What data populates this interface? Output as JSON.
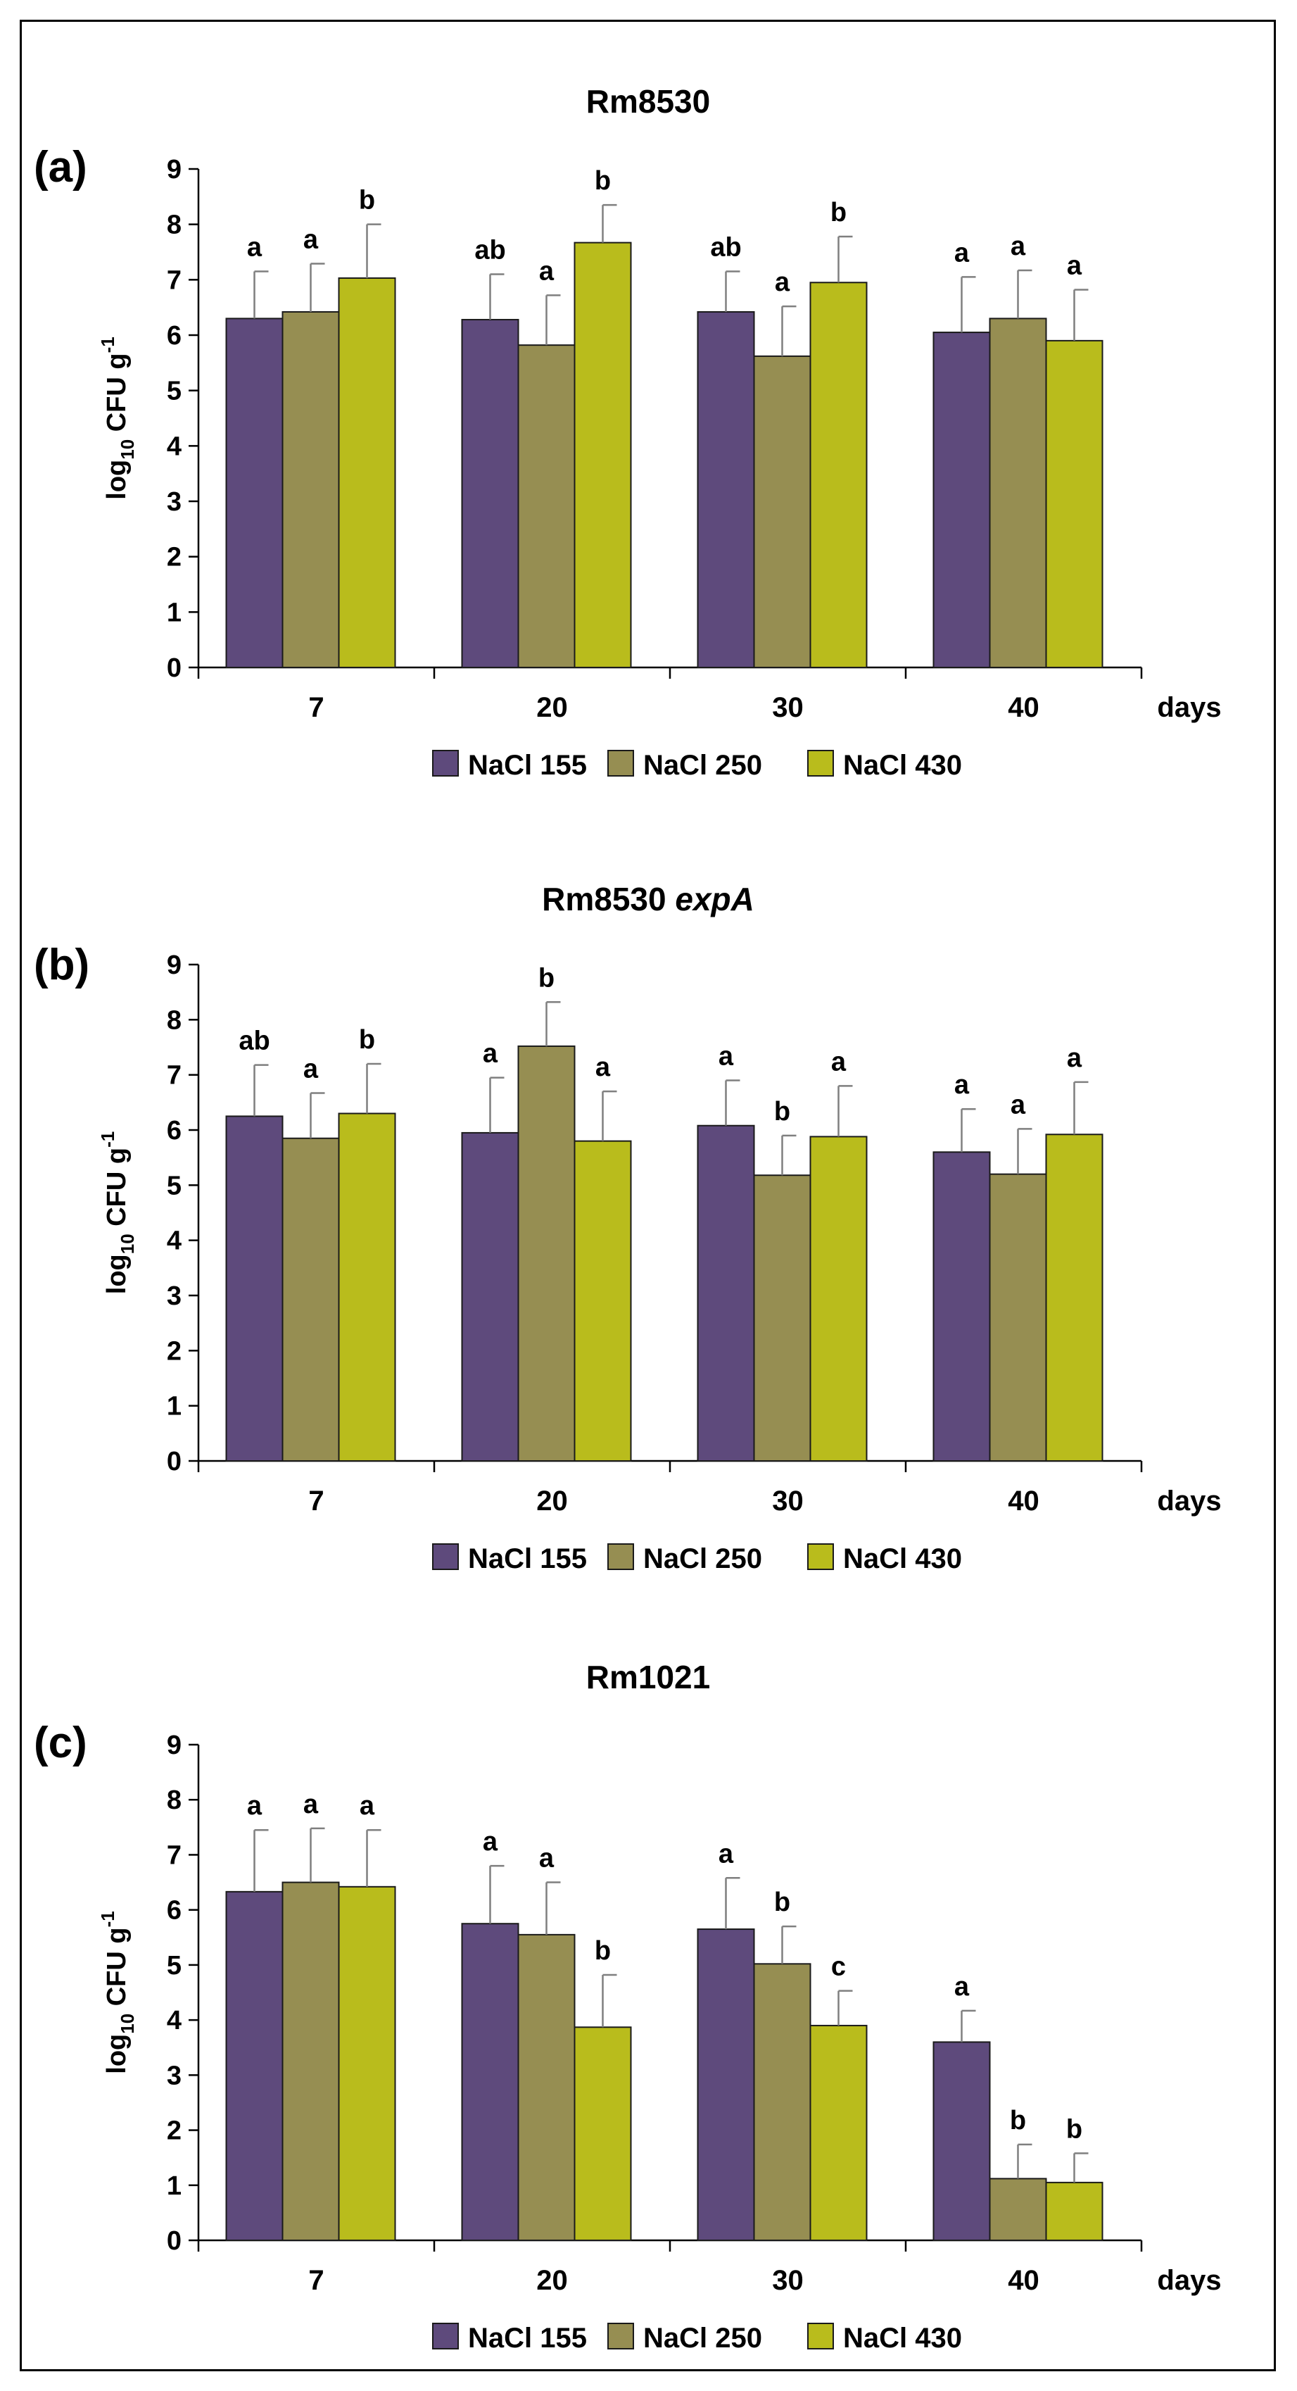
{
  "colors": {
    "NaCl 155": "#5e4a7c",
    "NaCl 250": "#968e52",
    "NaCl 430": "#b9bc1c",
    "error_bar": "#7f7f7f"
  },
  "legend_placement": "bottom-center",
  "chart_data": [
    {
      "type": "bar",
      "panel": "(a)",
      "title": "Rm8530",
      "title_italic": "",
      "ylabel": {
        "base": "log",
        "sub": "10",
        "main": " CFU g",
        "sup": "-1"
      },
      "xlabel": "days",
      "categories": [
        "7",
        "20",
        "30",
        "40"
      ],
      "ylim": [
        0,
        9
      ],
      "yticks": [
        "0",
        "1",
        "2",
        "3",
        "4",
        "5",
        "6",
        "7",
        "8",
        "9"
      ],
      "grid": false,
      "legend": [
        "NaCl 155",
        "NaCl 250",
        "NaCl 430"
      ],
      "series": [
        {
          "name": "NaCl 155",
          "values": [
            6.3,
            6.28,
            6.42,
            6.05
          ],
          "errors": [
            0.85,
            0.82,
            0.73,
            1.0
          ],
          "letters": [
            "a",
            "ab",
            "ab",
            "a"
          ]
        },
        {
          "name": "NaCl 250",
          "values": [
            6.42,
            5.82,
            5.62,
            6.3
          ],
          "errors": [
            0.87,
            0.9,
            0.9,
            0.87
          ],
          "letters": [
            "a",
            "a",
            "a",
            "a"
          ]
        },
        {
          "name": "NaCl 430",
          "values": [
            7.03,
            7.67,
            6.95,
            5.9
          ],
          "errors": [
            0.97,
            0.68,
            0.83,
            0.92
          ],
          "letters": [
            "b",
            "b",
            "b",
            "a"
          ]
        }
      ]
    },
    {
      "type": "bar",
      "panel": "(b)",
      "title": "Rm8530 ",
      "title_italic": "expA",
      "ylabel": {
        "base": "log",
        "sub": "10",
        "main": " CFU g",
        "sup": "-1"
      },
      "xlabel": "days",
      "categories": [
        "7",
        "20",
        "30",
        "40"
      ],
      "ylim": [
        0,
        9
      ],
      "yticks": [
        "0",
        "1",
        "2",
        "3",
        "4",
        "5",
        "6",
        "7",
        "8",
        "9"
      ],
      "grid": false,
      "legend": [
        "NaCl 155",
        "NaCl 250",
        "NaCl 430"
      ],
      "series": [
        {
          "name": "NaCl 155",
          "values": [
            6.25,
            5.95,
            6.08,
            5.6
          ],
          "errors": [
            0.93,
            1.0,
            0.82,
            0.78
          ],
          "letters": [
            "ab",
            "a",
            "a",
            "a"
          ]
        },
        {
          "name": "NaCl 250",
          "values": [
            5.85,
            7.52,
            5.18,
            5.2
          ],
          "errors": [
            0.82,
            0.8,
            0.72,
            0.82
          ],
          "letters": [
            "a",
            "b",
            "b",
            "a"
          ]
        },
        {
          "name": "NaCl 430",
          "values": [
            6.3,
            5.8,
            5.88,
            5.92
          ],
          "errors": [
            0.9,
            0.9,
            0.92,
            0.95
          ],
          "letters": [
            "b",
            "a",
            "a",
            "a"
          ]
        }
      ]
    },
    {
      "type": "bar",
      "panel": "(c)",
      "title": "Rm1021",
      "title_italic": "",
      "ylabel": {
        "base": "log",
        "sub": "10",
        "main": " CFU g",
        "sup": "-1"
      },
      "xlabel": "days",
      "categories": [
        "7",
        "20",
        "30",
        "40"
      ],
      "ylim": [
        0,
        9
      ],
      "yticks": [
        "0",
        "1",
        "2",
        "3",
        "4",
        "5",
        "6",
        "7",
        "8",
        "9"
      ],
      "grid": false,
      "legend": [
        "NaCl 155",
        "NaCl 250",
        "NaCl 430"
      ],
      "series": [
        {
          "name": "NaCl 155",
          "values": [
            6.33,
            5.75,
            5.65,
            3.6
          ],
          "errors": [
            1.12,
            1.05,
            0.93,
            0.57
          ],
          "letters": [
            "a",
            "a",
            "a",
            "a"
          ]
        },
        {
          "name": "NaCl 250",
          "values": [
            6.5,
            5.55,
            5.02,
            1.12
          ],
          "errors": [
            0.98,
            0.95,
            0.68,
            0.62
          ],
          "letters": [
            "a",
            "a",
            "b",
            "b"
          ]
        },
        {
          "name": "NaCl 430",
          "values": [
            6.42,
            3.87,
            3.9,
            1.05
          ],
          "errors": [
            1.03,
            0.95,
            0.63,
            0.53
          ],
          "letters": [
            "a",
            "b",
            "c",
            "b"
          ]
        }
      ]
    }
  ]
}
